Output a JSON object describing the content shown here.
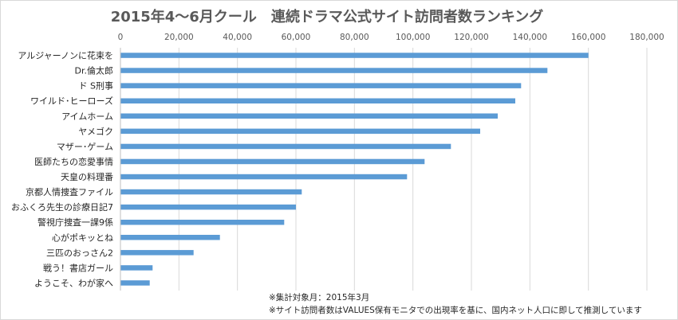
{
  "chart_data": {
    "type": "bar",
    "orientation": "horizontal",
    "title": "2015年4～6月クール　連続ドラマ公式サイト訪問者数ランキング",
    "xlim": [
      0,
      180000
    ],
    "x_ticks": [
      "0",
      "20,000",
      "40,000",
      "60,000",
      "80,000",
      "100,000",
      "120,000",
      "140,000",
      "160,000",
      "180,000"
    ],
    "x_tick_values": [
      0,
      20000,
      40000,
      60000,
      80000,
      100000,
      120000,
      140000,
      160000,
      180000
    ],
    "x_axis_position": "top",
    "grid": true,
    "bar_color": "#5b9bd5",
    "categories": [
      "アルジャーノンに花束を",
      "Dr.倫太郎",
      "ド S刑事",
      "ワイルド･ヒーローズ",
      "アイムホーム",
      "ヤメゴク",
      "マザー･ゲーム",
      "医師たちの恋愛事情",
      "天皇の料理番",
      "京都人情捜査ファイル",
      "おふくろ先生の診療日記7",
      "警視庁捜査一課9係",
      "心がポキッとね",
      "三匹のおっさん2",
      "戦う！書店ガール",
      "ようこそ、わが家へ"
    ],
    "values": [
      160000,
      146000,
      137000,
      135000,
      129000,
      123000,
      113000,
      104000,
      98000,
      62000,
      60000,
      56000,
      34000,
      25000,
      11000,
      10000
    ]
  },
  "notes": [
    "※集計対象月：2015年3月",
    "※サイト訪問者数はVALUES保有モニタでの出現率を基に、国内ネット人口に即して推測しています"
  ]
}
